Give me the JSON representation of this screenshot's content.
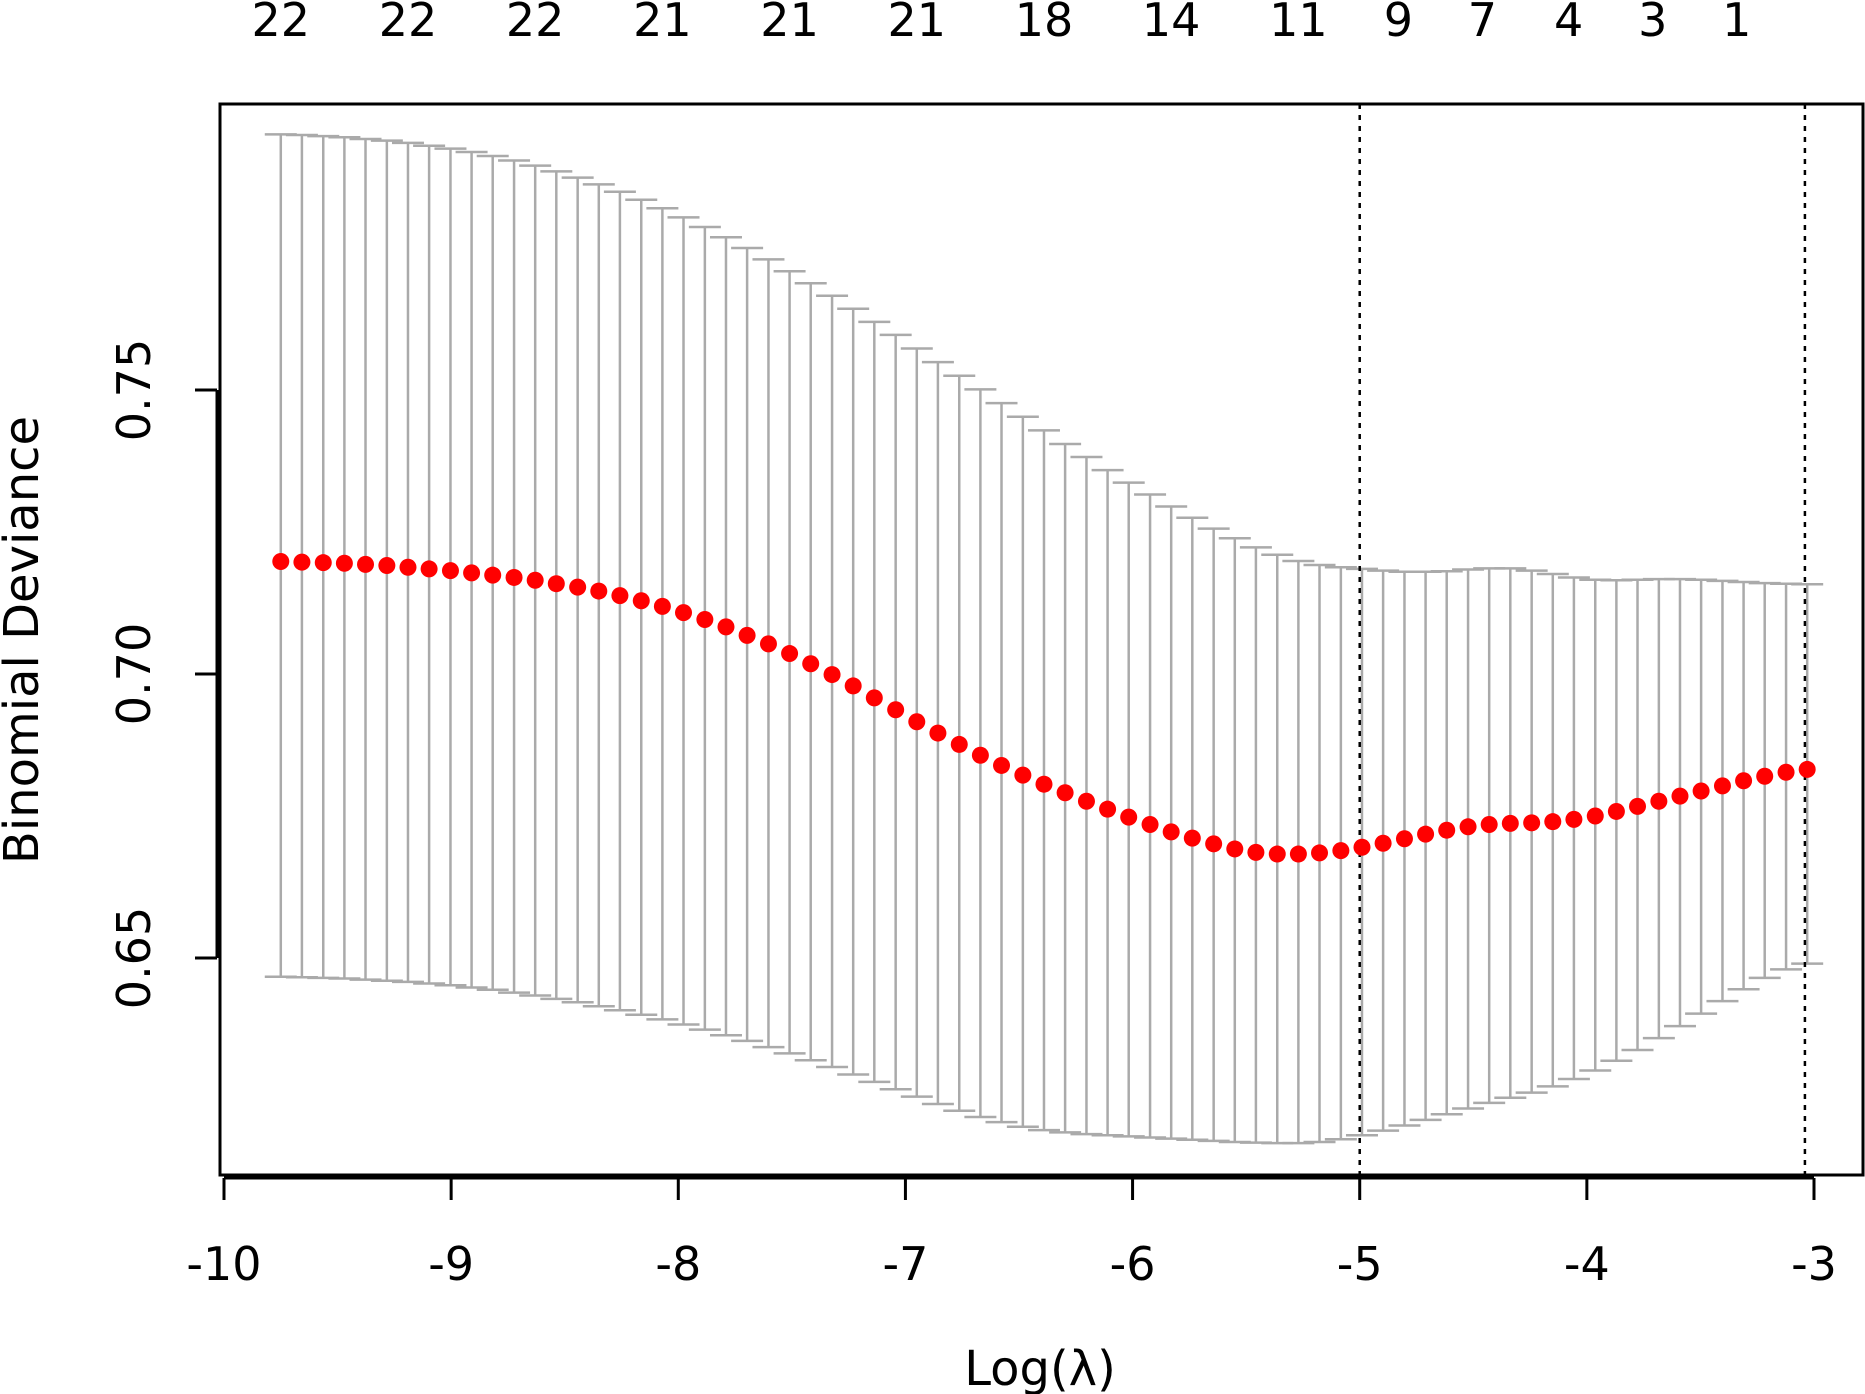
{
  "chart_data": {
    "type": "scatter",
    "xlabel": "Log(λ)",
    "ylabel": "Binomial Deviance",
    "xlim": [
      -10,
      -2.8
    ],
    "ylim": [
      0.613,
      0.8
    ],
    "x_ticks": [
      -10,
      -9,
      -8,
      -7,
      -6,
      -5,
      -4,
      -3
    ],
    "x_tick_labels": [
      "-10",
      "-9",
      "-8",
      "-7",
      "-6",
      "-5",
      "-4",
      "-3"
    ],
    "y_ticks": [
      0.65,
      0.7,
      0.75
    ],
    "y_tick_labels": [
      "0.65",
      "0.70",
      "0.75"
    ],
    "top_axis": {
      "x": [
        -9.75,
        -9.19,
        -8.63,
        -8.07,
        -7.51,
        -6.95,
        -6.39,
        -5.83,
        -5.27,
        -4.83,
        -4.46,
        -4.08,
        -3.71,
        -3.34
      ],
      "labels": [
        "22",
        "22",
        "22",
        "21",
        "21",
        "21",
        "18",
        "14",
        "11",
        "9",
        "7",
        "4",
        "3",
        "1"
      ]
    },
    "vlines": [
      -5.0,
      -3.04
    ],
    "point_color": "#ff0000",
    "errorbar_color": "#aaaaaa",
    "x": [
      -9.75,
      -9.657,
      -9.563,
      -9.47,
      -9.377,
      -9.283,
      -9.19,
      -9.097,
      -9.003,
      -8.91,
      -8.817,
      -8.723,
      -8.63,
      -8.537,
      -8.443,
      -8.35,
      -8.257,
      -8.163,
      -8.07,
      -7.977,
      -7.883,
      -7.79,
      -7.697,
      -7.603,
      -7.51,
      -7.417,
      -7.323,
      -7.23,
      -7.137,
      -7.043,
      -6.95,
      -6.857,
      -6.763,
      -6.67,
      -6.577,
      -6.483,
      -6.39,
      -6.297,
      -6.203,
      -6.11,
      -6.017,
      -5.923,
      -5.83,
      -5.737,
      -5.643,
      -5.55,
      -5.457,
      -5.363,
      -5.27,
      -5.177,
      -5.083,
      -4.99,
      -4.897,
      -4.803,
      -4.71,
      -4.617,
      -4.523,
      -4.43,
      -4.337,
      -4.243,
      -4.15,
      -4.057,
      -3.963,
      -3.87,
      -3.777,
      -3.683,
      -3.59,
      -3.497,
      -3.403,
      -3.31,
      -3.217,
      -3.123,
      -3.03
    ],
    "cvm": [
      0.7198,
      0.7197,
      0.7196,
      0.7195,
      0.7193,
      0.7191,
      0.7188,
      0.7185,
      0.7182,
      0.7178,
      0.7174,
      0.717,
      0.7165,
      0.7159,
      0.7153,
      0.7146,
      0.7138,
      0.7129,
      0.7119,
      0.7108,
      0.7096,
      0.7083,
      0.7068,
      0.7053,
      0.7036,
      0.7018,
      0.6999,
      0.6979,
      0.6958,
      0.6937,
      0.6916,
      0.6896,
      0.6876,
      0.6857,
      0.6839,
      0.6822,
      0.6806,
      0.6791,
      0.6776,
      0.6762,
      0.6748,
      0.6735,
      0.6722,
      0.6711,
      0.6701,
      0.6692,
      0.6686,
      0.6683,
      0.6683,
      0.6685,
      0.6689,
      0.6695,
      0.6702,
      0.671,
      0.6718,
      0.6725,
      0.6731,
      0.6735,
      0.6737,
      0.6738,
      0.674,
      0.6744,
      0.675,
      0.6758,
      0.6767,
      0.6776,
      0.6785,
      0.6794,
      0.6803,
      0.6812,
      0.682,
      0.6827,
      0.6832
    ],
    "upper": [
      0.795,
      0.7949,
      0.7947,
      0.7945,
      0.7942,
      0.7939,
      0.7935,
      0.793,
      0.7925,
      0.7919,
      0.7912,
      0.7904,
      0.7895,
      0.7885,
      0.7874,
      0.7862,
      0.7849,
      0.7835,
      0.782,
      0.7804,
      0.7787,
      0.7769,
      0.775,
      0.773,
      0.7709,
      0.7688,
      0.7666,
      0.7643,
      0.762,
      0.7597,
      0.7573,
      0.7549,
      0.7525,
      0.7501,
      0.7477,
      0.7453,
      0.7429,
      0.7405,
      0.7382,
      0.7359,
      0.7337,
      0.7316,
      0.7295,
      0.7275,
      0.7256,
      0.7239,
      0.7223,
      0.721,
      0.7199,
      0.7192,
      0.7188,
      0.7185,
      0.7182,
      0.718,
      0.718,
      0.7181,
      0.7184,
      0.7186,
      0.7186,
      0.7182,
      0.7176,
      0.717,
      0.7166,
      0.7165,
      0.7166,
      0.7167,
      0.7167,
      0.7166,
      0.7164,
      0.7162,
      0.716,
      0.7159,
      0.7158
    ],
    "lower": [
      0.6467,
      0.6466,
      0.6465,
      0.6464,
      0.6462,
      0.646,
      0.6458,
      0.6455,
      0.6452,
      0.6448,
      0.6444,
      0.6439,
      0.6434,
      0.6428,
      0.6422,
      0.6415,
      0.6408,
      0.64,
      0.6392,
      0.6383,
      0.6374,
      0.6364,
      0.6354,
      0.6343,
      0.6332,
      0.632,
      0.6308,
      0.6295,
      0.6282,
      0.6269,
      0.6256,
      0.6243,
      0.6231,
      0.622,
      0.6211,
      0.6203,
      0.6197,
      0.6193,
      0.619,
      0.6188,
      0.6186,
      0.6184,
      0.6182,
      0.618,
      0.6178,
      0.6176,
      0.6175,
      0.6174,
      0.6174,
      0.6176,
      0.6181,
      0.6188,
      0.6196,
      0.6205,
      0.6215,
      0.6225,
      0.6235,
      0.6245,
      0.6254,
      0.6263,
      0.6274,
      0.6287,
      0.6302,
      0.6319,
      0.6338,
      0.6359,
      0.638,
      0.6402,
      0.6424,
      0.6445,
      0.6465,
      0.648,
      0.649
    ]
  }
}
